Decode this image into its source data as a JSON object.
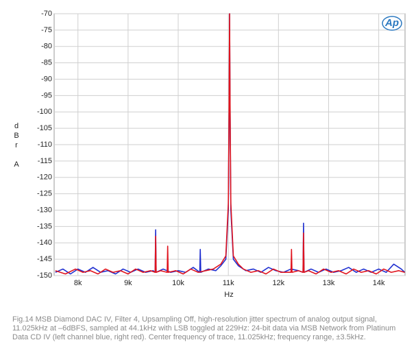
{
  "chart_data": {
    "type": "line",
    "y_label": "dBr A",
    "x_label": "Hz",
    "logo": "Ap",
    "caption": "Fig.14 MSB Diamond DAC IV, Filter 4, Upsampling Off, high-resolution jitter spectrum of analog output signal, 11.025kHz at –6dBFS, sampled at 44.1kHz with LSB toggled at 229Hz: 24-bit data via MSB Network from Platinum Data CD IV (left channel blue, right red). Center frequency of trace, 11.025kHz; frequency range, ±3.5kHz.",
    "xlim": [
      7.525,
      14.525
    ],
    "xticks": [
      {
        "value": 8,
        "label": "8k"
      },
      {
        "value": 9,
        "label": "9k"
      },
      {
        "value": 10,
        "label": "10k"
      },
      {
        "value": 11,
        "label": "11k"
      },
      {
        "value": 12,
        "label": "12k"
      },
      {
        "value": 13,
        "label": "13k"
      },
      {
        "value": 14,
        "label": "14k"
      }
    ],
    "ylim": [
      -150,
      -70
    ],
    "yticks": [
      -70,
      -75,
      -80,
      -85,
      -90,
      -95,
      -100,
      -105,
      -110,
      -115,
      -120,
      -125,
      -130,
      -135,
      -140,
      -145,
      -150
    ],
    "grid": true,
    "series": [
      {
        "color": "#1f2fd0",
        "x": [
          7.55,
          7.7,
          7.85,
          8.0,
          8.15,
          8.3,
          8.45,
          8.6,
          8.75,
          8.9,
          9.05,
          9.2,
          9.35,
          9.5,
          9.54,
          9.55,
          9.56,
          9.7,
          9.85,
          10.0,
          10.15,
          10.3,
          10.43,
          10.44,
          10.45,
          10.6,
          10.75,
          10.85,
          10.95,
          11.0,
          11.015,
          11.025,
          11.035,
          11.05,
          11.1,
          11.2,
          11.35,
          11.5,
          11.65,
          11.8,
          11.95,
          12.1,
          12.25,
          12.4,
          12.49,
          12.5,
          12.51,
          12.65,
          12.8,
          12.95,
          13.1,
          13.25,
          13.4,
          13.55,
          13.7,
          13.85,
          14.0,
          14.15,
          14.3,
          14.45,
          14.52
        ],
        "values": [
          -149,
          -148,
          -149.5,
          -148,
          -149,
          -147.5,
          -149,
          -148.5,
          -149.5,
          -148,
          -149,
          -148,
          -149,
          -148.5,
          -149,
          -136,
          -149,
          -148,
          -149,
          -148.5,
          -149,
          -147.5,
          -149,
          -142,
          -149,
          -148,
          -148.5,
          -147,
          -145,
          -130,
          -100,
          -70,
          -100,
          -130,
          -145,
          -147,
          -148.5,
          -148,
          -149,
          -147.5,
          -148.5,
          -149,
          -148,
          -148.5,
          -149,
          -134,
          -149,
          -148,
          -149,
          -148,
          -149,
          -148.5,
          -147.5,
          -149,
          -148,
          -149,
          -148,
          -149,
          -146.5,
          -148,
          -149
        ]
      },
      {
        "color": "#e0141e",
        "x": [
          7.55,
          7.75,
          7.95,
          8.1,
          8.25,
          8.4,
          8.55,
          8.7,
          8.85,
          9.0,
          9.15,
          9.3,
          9.45,
          9.54,
          9.55,
          9.56,
          9.65,
          9.78,
          9.79,
          9.8,
          9.95,
          10.1,
          10.25,
          10.4,
          10.55,
          10.7,
          10.85,
          10.95,
          11.0,
          11.015,
          11.025,
          11.035,
          11.05,
          11.1,
          11.2,
          11.3,
          11.45,
          11.6,
          11.75,
          11.9,
          12.05,
          12.25,
          12.26,
          12.27,
          12.4,
          12.49,
          12.5,
          12.51,
          12.6,
          12.75,
          12.9,
          13.05,
          13.2,
          13.35,
          13.5,
          13.65,
          13.8,
          13.95,
          14.1,
          14.25,
          14.4,
          14.52
        ],
        "values": [
          -148.5,
          -149.5,
          -148,
          -149,
          -148.5,
          -149.5,
          -148,
          -149,
          -148.5,
          -149.5,
          -148,
          -149,
          -148.5,
          -149,
          -138,
          -149,
          -148.5,
          -149,
          -141,
          -149,
          -148.5,
          -149.5,
          -148,
          -149,
          -148.5,
          -148,
          -146.5,
          -144,
          -128,
          -98,
          -70,
          -98,
          -128,
          -144,
          -146.5,
          -148,
          -149,
          -148.5,
          -149.5,
          -148,
          -149,
          -149,
          -142,
          -149,
          -148.5,
          -149,
          -137,
          -149,
          -148.5,
          -149.5,
          -148,
          -149,
          -148.5,
          -149.5,
          -148,
          -149,
          -148.5,
          -149.5,
          -148,
          -149,
          -148.5,
          -149
        ]
      }
    ]
  }
}
